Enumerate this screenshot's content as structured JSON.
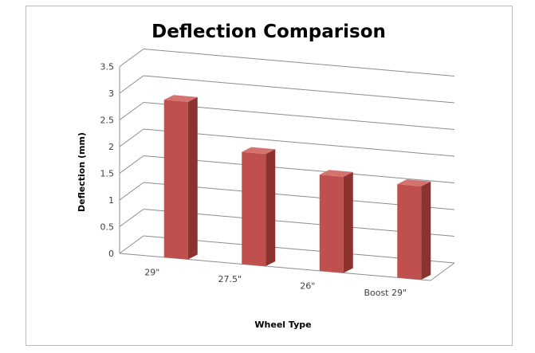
{
  "chart_data": {
    "type": "bar",
    "title": "Deflection Comparison",
    "xlabel": "Wheel Type",
    "ylabel": "Deflection (mm)",
    "categories": [
      "29\"",
      "27.5\"",
      "26\"",
      "Boost  29\""
    ],
    "values": [
      2.95,
      2.1,
      1.8,
      1.75
    ],
    "ylim": [
      0,
      3.5
    ],
    "yticks": [
      "0",
      "0.5",
      "1",
      "1.5",
      "2",
      "2.5",
      "3",
      "3.5"
    ],
    "grid": true,
    "legend": "none",
    "style": "3d-column"
  },
  "colors": {
    "bar_front": "#c0504d",
    "bar_side": "#8c3330",
    "bar_top": "#d4726f",
    "gridline": "#8c8c8c",
    "frame": "#bdbdbd"
  }
}
